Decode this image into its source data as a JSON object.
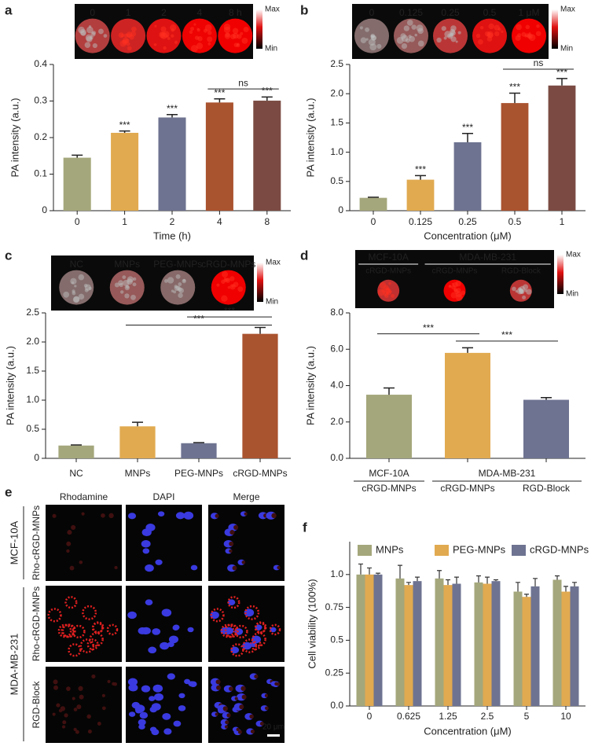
{
  "chart_data": [
    {
      "type": "bar",
      "panel": "a",
      "image_labels": [
        "0",
        "1",
        "2",
        "4",
        "8 h"
      ],
      "colorbar": [
        "Max",
        "Min"
      ],
      "categories": [
        "0",
        "1",
        "2",
        "4",
        "8"
      ],
      "values": [
        0.145,
        0.213,
        0.255,
        0.296,
        0.301
      ],
      "errors": [
        0.007,
        0.005,
        0.008,
        0.01,
        0.01
      ],
      "colors": [
        "#a4a77b",
        "#e1aa50",
        "#6e7391",
        "#aa532f",
        "#7b4b43"
      ],
      "ylabel": "PA intensity (a.u.)",
      "xlabel": "Time (h)",
      "ylim": [
        0,
        0.4
      ],
      "yticks": [
        0,
        0.1,
        0.2,
        0.3,
        0.4
      ],
      "stars": [
        null,
        "***",
        "***",
        "***",
        "***"
      ],
      "brackets": [
        {
          "label": "ns",
          "between": [
            3,
            4
          ],
          "y": 0.333
        }
      ]
    },
    {
      "type": "bar",
      "panel": "b",
      "image_labels": [
        "0",
        "0.125",
        "0.25",
        "0.5",
        "1 μM"
      ],
      "colorbar": [
        "Max",
        "Min"
      ],
      "categories": [
        "0",
        "0.125",
        "0.25",
        "0.5",
        "1"
      ],
      "values": [
        0.22,
        0.53,
        1.17,
        1.84,
        2.14
      ],
      "errors": [
        0.01,
        0.07,
        0.15,
        0.17,
        0.12
      ],
      "colors": [
        "#a4a77b",
        "#e1aa50",
        "#6e7391",
        "#aa532f",
        "#7b4b43"
      ],
      "ylabel": "PA intensity (a.u.)",
      "xlabel": "Concentration (μM)",
      "ylim": [
        0,
        2.5
      ],
      "yticks": [
        0,
        0.5,
        {
          "value": 1,
          "label": "1.0"
        },
        1.5,
        {
          "value": 2,
          "label": "2.0"
        },
        2.5
      ],
      "stars": [
        null,
        "***",
        "***",
        "***",
        "***"
      ],
      "brackets": [
        {
          "label": "ns",
          "between": [
            3,
            4
          ],
          "y": 2.42
        }
      ]
    },
    {
      "type": "bar",
      "panel": "c",
      "image_labels": [
        "NC",
        "MNPs",
        "PEG-MNPs",
        "cRGD-MNPs"
      ],
      "colorbar": [
        "Max",
        "Min"
      ],
      "categories": [
        "NC",
        "MNPs",
        "PEG-MNPs",
        "cRGD-MNPs"
      ],
      "values": [
        0.22,
        0.55,
        0.26,
        2.14
      ],
      "errors": [
        0.01,
        0.07,
        0.01,
        0.11
      ],
      "colors": [
        "#a4a77b",
        "#e1aa50",
        "#6e7391",
        "#aa532f"
      ],
      "ylabel": "PA intensity (a.u.)",
      "ylim": [
        0,
        2.5
      ],
      "yticks": [
        0,
        0.5,
        {
          "value": 1,
          "label": "1.0"
        },
        1.5,
        {
          "value": 2,
          "label": "2.0"
        },
        2.5
      ],
      "brackets": [
        {
          "label": "***",
          "between": [
            2,
            3
          ],
          "y": 2.43
        },
        {
          "label": "***",
          "between": [
            1,
            3
          ],
          "y": 2.29
        }
      ]
    },
    {
      "type": "bar",
      "panel": "d",
      "colorbar": [
        "Max",
        "Min"
      ],
      "image_groups": [
        {
          "label": "MCF-10A",
          "span": [
            0,
            0
          ]
        },
        {
          "label": "MDA-MB-231",
          "span": [
            1,
            2
          ]
        }
      ],
      "image_labels": [
        "cRGD-MNPs",
        "cRGD-MNPs",
        "RGD-Block"
      ],
      "groups": [
        {
          "label": "MCF-10A",
          "span": [
            0,
            0
          ]
        },
        {
          "label": "MDA-MB-231",
          "span": [
            1,
            2
          ]
        }
      ],
      "categories": [
        "cRGD-MNPs",
        "cRGD-MNPs",
        "RGD-Block"
      ],
      "values": [
        3.5,
        5.8,
        3.22
      ],
      "errors": [
        0.37,
        0.28,
        0.12
      ],
      "colors": [
        "#a4a77b",
        "#e1aa50",
        "#6e7391"
      ],
      "ylabel": "PA intensity (a.u.)",
      "ylim": [
        0,
        8
      ],
      "yticks": [
        {
          "value": 0,
          "label": "0.0"
        },
        {
          "value": 2,
          "label": "2.0"
        },
        {
          "value": 4,
          "label": "4.0"
        },
        {
          "value": 6,
          "label": "6.0"
        },
        {
          "value": 8,
          "label": "8.0"
        }
      ],
      "brackets": [
        {
          "label": "***",
          "between": [
            0,
            1
          ],
          "y": 6.85
        },
        {
          "label": "***",
          "between": [
            1,
            2
          ],
          "y": 6.45
        }
      ]
    },
    {
      "type": "bar",
      "panel": "f",
      "categories": [
        "0",
        "0.625",
        "1.25",
        "2.5",
        "5",
        "10"
      ],
      "series": [
        {
          "name": "MNPs",
          "color": "#a4a77b",
          "values": [
            1.0,
            0.97,
            0.97,
            0.94,
            0.87,
            0.96
          ],
          "errors": [
            0.08,
            0.1,
            0.06,
            0.05,
            0.07,
            0.03
          ]
        },
        {
          "name": "PEG-MNPs",
          "color": "#e1aa50",
          "values": [
            1.0,
            0.92,
            0.92,
            0.93,
            0.83,
            0.87
          ],
          "errors": [
            0.05,
            0.02,
            0.04,
            0.05,
            0.02,
            0.04
          ]
        },
        {
          "name": "cRGD-MNPs",
          "color": "#6e7391",
          "values": [
            1.0,
            0.95,
            0.93,
            0.95,
            0.91,
            0.91
          ],
          "errors": [
            0.01,
            0.03,
            0.05,
            0.01,
            0.06,
            0.03
          ]
        }
      ],
      "ylabel": "Cell viability (100%)",
      "xlabel": "Concentration (μM)",
      "ylim": [
        0,
        1.25
      ],
      "yticks": [
        {
          "value": 0,
          "label": "0.0"
        },
        0.25,
        0.5,
        0.75,
        {
          "value": 1,
          "label": "1.0"
        }
      ],
      "legend": "top"
    }
  ],
  "panel_e": {
    "letter": "e",
    "columns": [
      "Rhodamine",
      "DAPI",
      "Merge"
    ],
    "groups": [
      {
        "label": "MCF-10A",
        "rows": [
          "Rho-cRGD-MNPs"
        ]
      },
      {
        "label": "MDA-MB-231",
        "rows": [
          "Rho-cRGD-MNPs",
          "RGD-Block"
        ]
      }
    ],
    "scale_bar": "20 μm"
  }
}
